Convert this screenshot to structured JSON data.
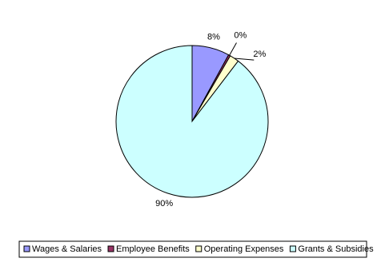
{
  "chart_data": {
    "type": "pie",
    "categories": [
      "Wages & Salaries",
      "Employee Benefits",
      "Operating Expenses",
      "Grants & Subsidies"
    ],
    "values": [
      8,
      0.4,
      2,
      90
    ],
    "value_labels": [
      "8%",
      "0%",
      "2%",
      "90%"
    ],
    "colors": [
      "#9999ff",
      "#993366",
      "#ffffcc",
      "#ccffff"
    ],
    "legend": "bottom"
  }
}
